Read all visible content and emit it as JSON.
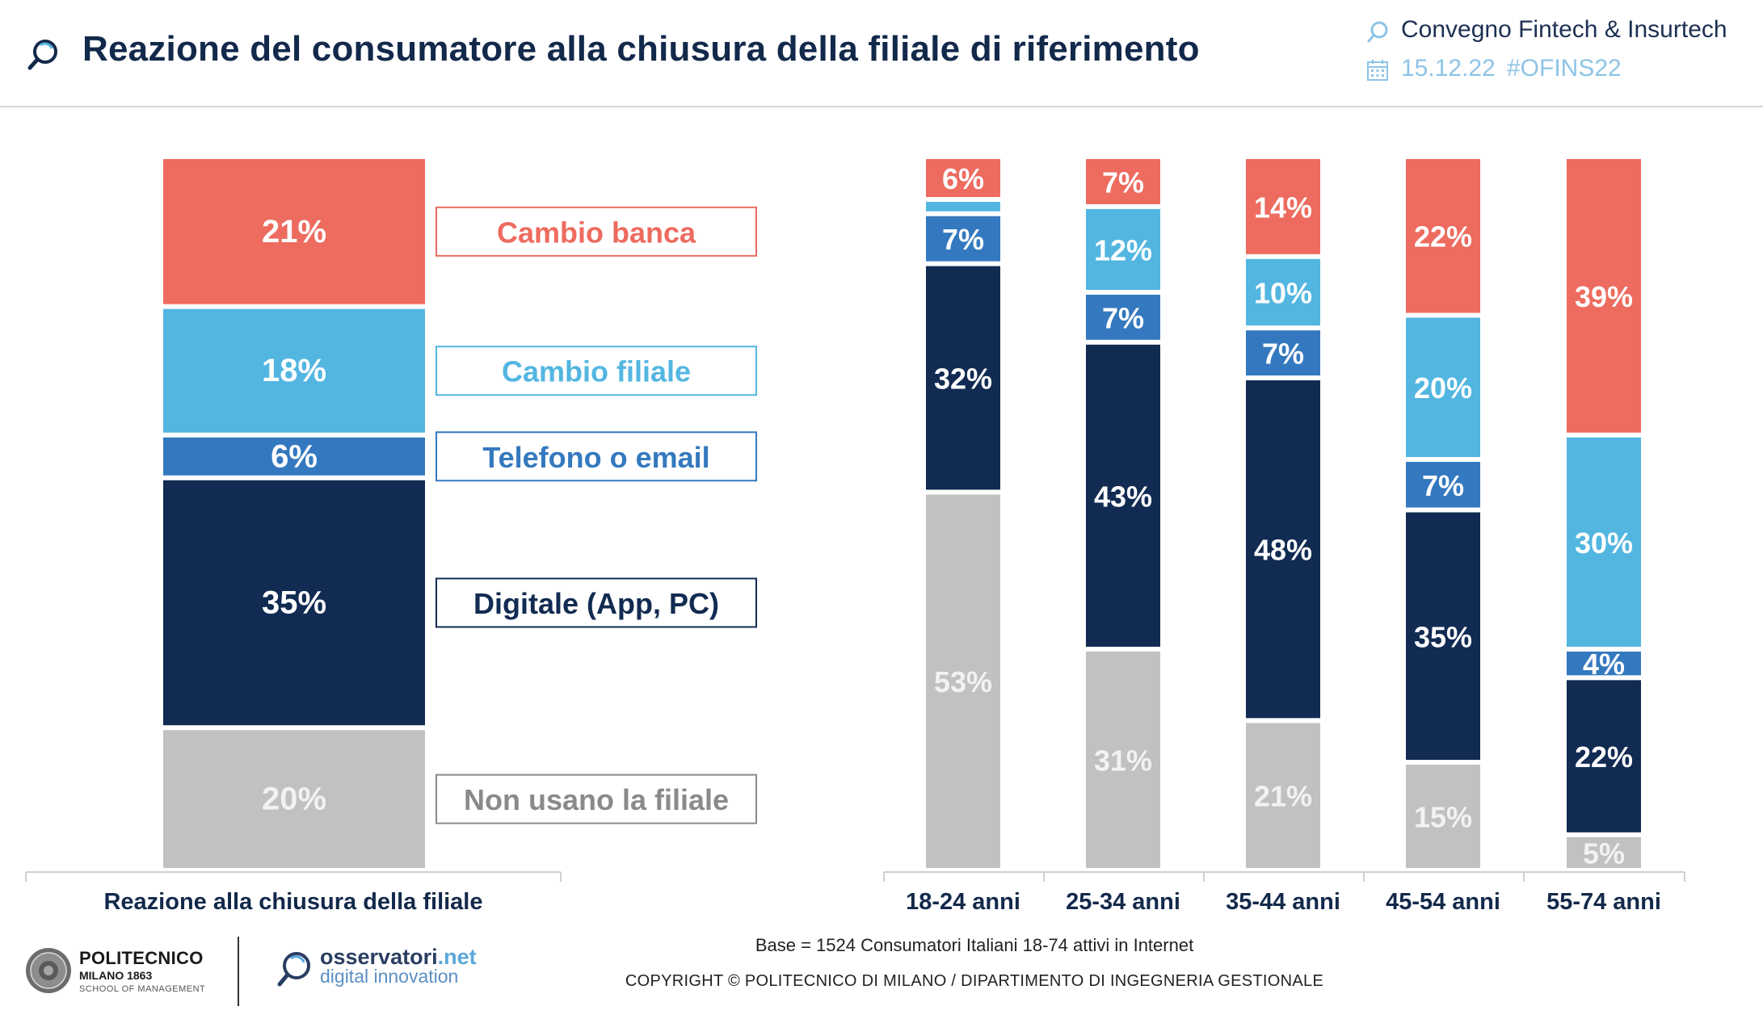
{
  "header": {
    "title": "Reazione del consumatore alla chiusura della filiale di riferimento",
    "event_name": "Convegno Fintech & Insurtech",
    "event_date": "15.12.22",
    "event_tag": "#OFINS22"
  },
  "colors": {
    "cambio_banca": "#ed6b5f",
    "cambio_filiale": "#53b6e1",
    "telefono_email": "#3479bf",
    "digitale": "#112b52",
    "non_usano": "#c1c1c1",
    "non_usano_text": "#8a8a8a"
  },
  "chart_data": [
    {
      "type": "bar",
      "stacked": true,
      "xlabel": "Reazione alla chiusura della filiale",
      "categories": [
        "Reazione alla chiusura della filiale"
      ],
      "series": [
        {
          "name": "Non usano la filiale",
          "values": [
            20
          ],
          "label": "20%"
        },
        {
          "name": "Digitale (App, PC)",
          "values": [
            35
          ],
          "label": "35%"
        },
        {
          "name": "Telefono o email",
          "values": [
            6
          ],
          "label": "6%"
        },
        {
          "name": "Cambio filiale",
          "values": [
            18
          ],
          "label": "18%"
        },
        {
          "name": "Cambio banca",
          "values": [
            21
          ],
          "label": "21%"
        }
      ],
      "legend": [
        "Cambio banca",
        "Cambio filiale",
        "Telefono o email",
        "Digitale (App, PC)",
        "Non usano la filiale"
      ]
    },
    {
      "type": "bar",
      "stacked": true,
      "categories": [
        "18-24 anni",
        "25-34 anni",
        "35-44 anni",
        "45-54 anni",
        "55-74 anni"
      ],
      "series": [
        {
          "name": "Non usano la filiale",
          "values": [
            53,
            31,
            21,
            15,
            5
          ],
          "labels": [
            "53%",
            "31%",
            "21%",
            "15%",
            "5%"
          ]
        },
        {
          "name": "Digitale (App, PC)",
          "values": [
            32,
            43,
            48,
            35,
            22
          ],
          "labels": [
            "32%",
            "43%",
            "48%",
            "35%",
            "22%"
          ]
        },
        {
          "name": "Telefono o email",
          "values": [
            7,
            7,
            7,
            7,
            4
          ],
          "labels": [
            "7%",
            "7%",
            "7%",
            "7%",
            "4%"
          ]
        },
        {
          "name": "Cambio filiale",
          "values": [
            2,
            12,
            10,
            20,
            30
          ],
          "labels": [
            "",
            "12%",
            "10%",
            "20%",
            "30%"
          ]
        },
        {
          "name": "Cambio banca",
          "values": [
            6,
            7,
            14,
            22,
            39
          ],
          "labels": [
            "6%",
            "7%",
            "14%",
            "22%",
            "39%"
          ]
        }
      ]
    }
  ],
  "footer": {
    "base": "Base = 1524 Consumatori Italiani 18-74 attivi in Internet",
    "copyright": "COPYRIGHT © POLITECNICO DI MILANO / DIPARTIMENTO DI INGEGNERIA GESTIONALE",
    "polimi_name": "POLITECNICO",
    "polimi_city": "MILANO 1863",
    "polimi_school": "SCHOOL OF MANAGEMENT",
    "osservatori_name": "osservatori",
    "osservatori_net": ".net",
    "osservatori_sub": "digital innovation"
  }
}
